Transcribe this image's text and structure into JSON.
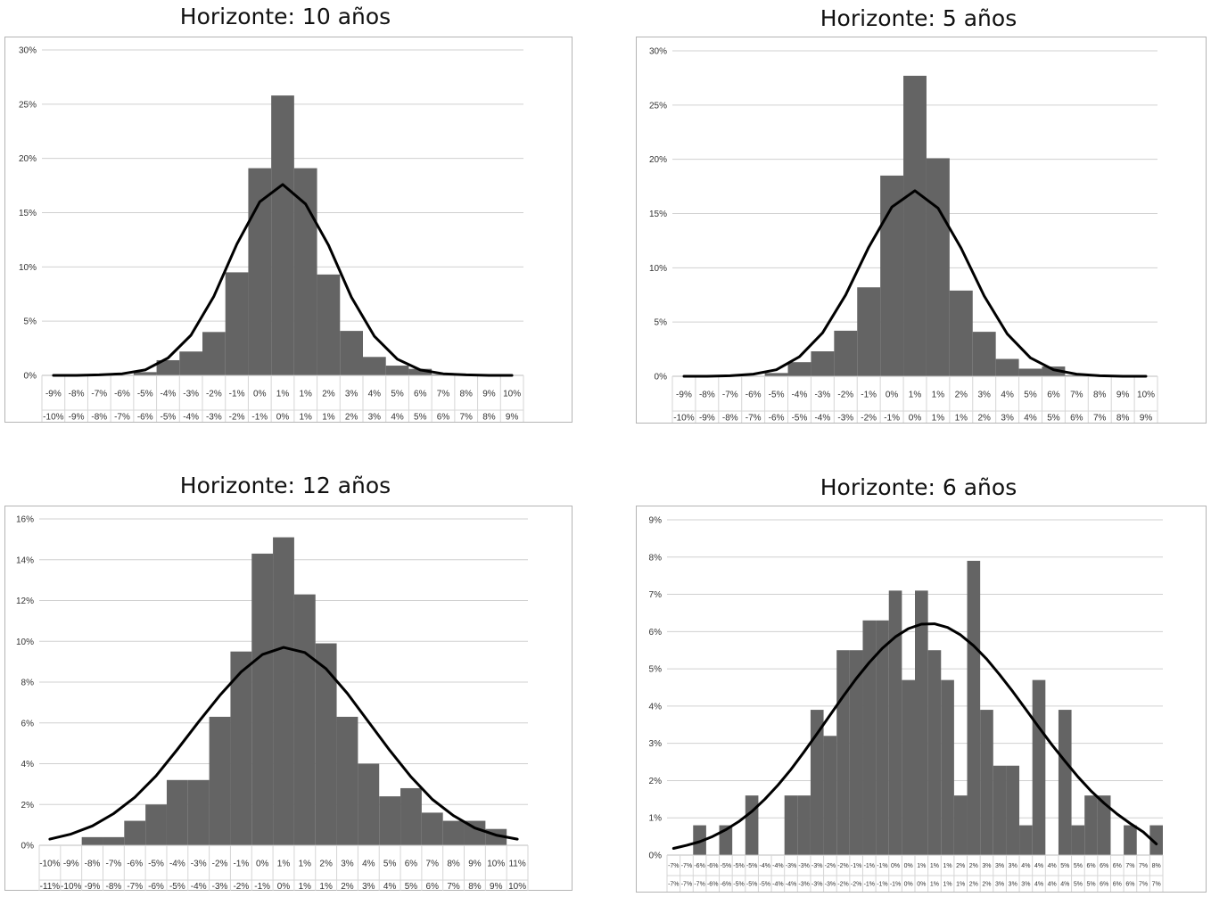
{
  "chart_data": [
    {
      "type": "bar",
      "title": "Horizonte: 10 años",
      "ylim": [
        0,
        30
      ],
      "yticks": [
        "0%",
        "5%",
        "10%",
        "15%",
        "20%",
        "25%",
        "30%"
      ],
      "categories_upper": [
        "-9%",
        "-8%",
        "-7%",
        "-6%",
        "-5%",
        "-4%",
        "-3%",
        "-2%",
        "-1%",
        "0%",
        "1%",
        "1%",
        "2%",
        "3%",
        "4%",
        "5%",
        "6%",
        "7%",
        "8%",
        "9%",
        "10%"
      ],
      "categories_lower": [
        "-10%",
        "-9%",
        "-8%",
        "-7%",
        "-6%",
        "-5%",
        "-4%",
        "-3%",
        "-2%",
        "-1%",
        "0%",
        "1%",
        "1%",
        "2%",
        "3%",
        "4%",
        "5%",
        "6%",
        "7%",
        "8%",
        "9%"
      ],
      "series": [
        {
          "type": "bar",
          "values": [
            0,
            0,
            0,
            0,
            0.3,
            1.4,
            2.2,
            4.0,
            9.5,
            19.1,
            25.8,
            19.1,
            9.3,
            4.1,
            1.7,
            0.9,
            0.6,
            0.1,
            0,
            0.1,
            0
          ]
        },
        {
          "type": "line",
          "values": [
            0,
            0,
            0.05,
            0.15,
            0.5,
            1.6,
            3.7,
            7.3,
            12.1,
            16.0,
            17.6,
            15.8,
            12.0,
            7.2,
            3.6,
            1.5,
            0.5,
            0.15,
            0.05,
            0,
            0
          ]
        }
      ],
      "grid": true
    },
    {
      "type": "bar",
      "title": "Horizonte: 5 años",
      "ylim": [
        0,
        30
      ],
      "yticks": [
        "0%",
        "5%",
        "10%",
        "15%",
        "20%",
        "25%",
        "30%"
      ],
      "categories_upper": [
        "-9%",
        "-8%",
        "-7%",
        "-6%",
        "-5%",
        "-4%",
        "-3%",
        "-2%",
        "-1%",
        "0%",
        "1%",
        "1%",
        "2%",
        "3%",
        "4%",
        "5%",
        "6%",
        "7%",
        "8%",
        "9%",
        "10%"
      ],
      "categories_lower": [
        "-10%",
        "-9%",
        "-8%",
        "-7%",
        "-6%",
        "-5%",
        "-4%",
        "-3%",
        "-2%",
        "-1%",
        "0%",
        "1%",
        "1%",
        "2%",
        "3%",
        "4%",
        "5%",
        "6%",
        "7%",
        "8%",
        "9%"
      ],
      "series": [
        {
          "type": "bar",
          "values": [
            0,
            0,
            0,
            0,
            0.3,
            1.3,
            2.3,
            4.2,
            8.2,
            18.5,
            27.7,
            20.1,
            7.9,
            4.1,
            1.6,
            0.7,
            0.9,
            0.1,
            0,
            0.1,
            0
          ]
        },
        {
          "type": "line",
          "values": [
            0,
            0,
            0.05,
            0.2,
            0.6,
            1.8,
            4.0,
            7.5,
            11.9,
            15.6,
            17.1,
            15.5,
            11.8,
            7.4,
            3.9,
            1.7,
            0.6,
            0.2,
            0.05,
            0,
            0
          ]
        }
      ],
      "grid": true
    },
    {
      "type": "bar",
      "title": "Horizonte: 12 años",
      "ylim": [
        0,
        16
      ],
      "yticks": [
        "0%",
        "2%",
        "4%",
        "6%",
        "8%",
        "10%",
        "12%",
        "14%",
        "16%"
      ],
      "categories_upper": [
        "-10%",
        "-9%",
        "-8%",
        "-7%",
        "-6%",
        "-5%",
        "-4%",
        "-3%",
        "-2%",
        "-1%",
        "0%",
        "1%",
        "1%",
        "2%",
        "3%",
        "4%",
        "5%",
        "6%",
        "7%",
        "8%",
        "9%",
        "10%",
        "11%"
      ],
      "categories_lower": [
        "-11%",
        "-10%",
        "-9%",
        "-8%",
        "-7%",
        "-6%",
        "-5%",
        "-4%",
        "-3%",
        "-2%",
        "-1%",
        "0%",
        "1%",
        "1%",
        "2%",
        "3%",
        "4%",
        "5%",
        "6%",
        "7%",
        "8%",
        "9%",
        "10%"
      ],
      "series": [
        {
          "type": "bar",
          "values": [
            0,
            0,
            0.4,
            0.4,
            1.2,
            2.0,
            3.2,
            3.2,
            6.3,
            9.5,
            14.3,
            15.1,
            12.3,
            9.9,
            6.3,
            4.0,
            2.4,
            2.8,
            1.6,
            1.2,
            1.2,
            0.8,
            0
          ]
        },
        {
          "type": "line",
          "values": [
            0.3,
            0.55,
            0.95,
            1.55,
            2.35,
            3.4,
            4.7,
            6.05,
            7.35,
            8.5,
            9.35,
            9.7,
            9.45,
            8.65,
            7.45,
            6.05,
            4.65,
            3.35,
            2.25,
            1.45,
            0.85,
            0.5,
            0.3
          ]
        }
      ],
      "grid": true
    },
    {
      "type": "bar",
      "title": "Horizonte: 6 años",
      "ylim": [
        0,
        9
      ],
      "yticks": [
        "0%",
        "1%",
        "2%",
        "3%",
        "4%",
        "5%",
        "6%",
        "7%",
        "8%",
        "9%"
      ],
      "categories_upper": [
        "-7%",
        "-7%",
        "-6%",
        "-6%",
        "-5%",
        "-5%",
        "-5%",
        "-4%",
        "-4%",
        "-3%",
        "-3%",
        "-3%",
        "-2%",
        "-2%",
        "-1%",
        "-1%",
        "-1%",
        "0%",
        "0%",
        "1%",
        "1%",
        "1%",
        "2%",
        "2%",
        "3%",
        "3%",
        "3%",
        "4%",
        "4%",
        "4%",
        "5%",
        "5%",
        "6%",
        "6%",
        "6%",
        "7%",
        "7%",
        "8%"
      ],
      "categories_lower": [
        "-7%",
        "-7%",
        "-7%",
        "-6%",
        "-6%",
        "-5%",
        "-5%",
        "-5%",
        "-4%",
        "-4%",
        "-3%",
        "-3%",
        "-3%",
        "-2%",
        "-2%",
        "-1%",
        "-1%",
        "-1%",
        "0%",
        "0%",
        "1%",
        "1%",
        "1%",
        "2%",
        "2%",
        "3%",
        "3%",
        "3%",
        "4%",
        "4%",
        "4%",
        "5%",
        "5%",
        "6%",
        "6%",
        "6%",
        "7%",
        "7%"
      ],
      "series": [
        {
          "type": "bar",
          "values": [
            0,
            0,
            0.8,
            0,
            0.8,
            0,
            1.6,
            0,
            0,
            1.6,
            1.6,
            3.9,
            3.2,
            5.5,
            5.5,
            6.3,
            6.3,
            7.1,
            4.7,
            7.1,
            5.5,
            4.7,
            1.6,
            7.9,
            3.9,
            2.4,
            2.4,
            0.8,
            4.7,
            0,
            3.9,
            0.8,
            1.6,
            1.6,
            0,
            0.8,
            0,
            0.8
          ]
        },
        {
          "type": "line",
          "values": [
            0.18,
            0.26,
            0.36,
            0.5,
            0.68,
            0.9,
            1.17,
            1.5,
            1.88,
            2.3,
            2.77,
            3.26,
            3.76,
            4.26,
            4.74,
            5.17,
            5.55,
            5.86,
            6.08,
            6.2,
            6.21,
            6.11,
            5.91,
            5.62,
            5.26,
            4.84,
            4.39,
            3.91,
            3.43,
            2.96,
            2.52,
            2.1,
            1.72,
            1.39,
            1.1,
            0.85,
            0.62,
            0.3
          ]
        }
      ],
      "grid": true
    }
  ]
}
